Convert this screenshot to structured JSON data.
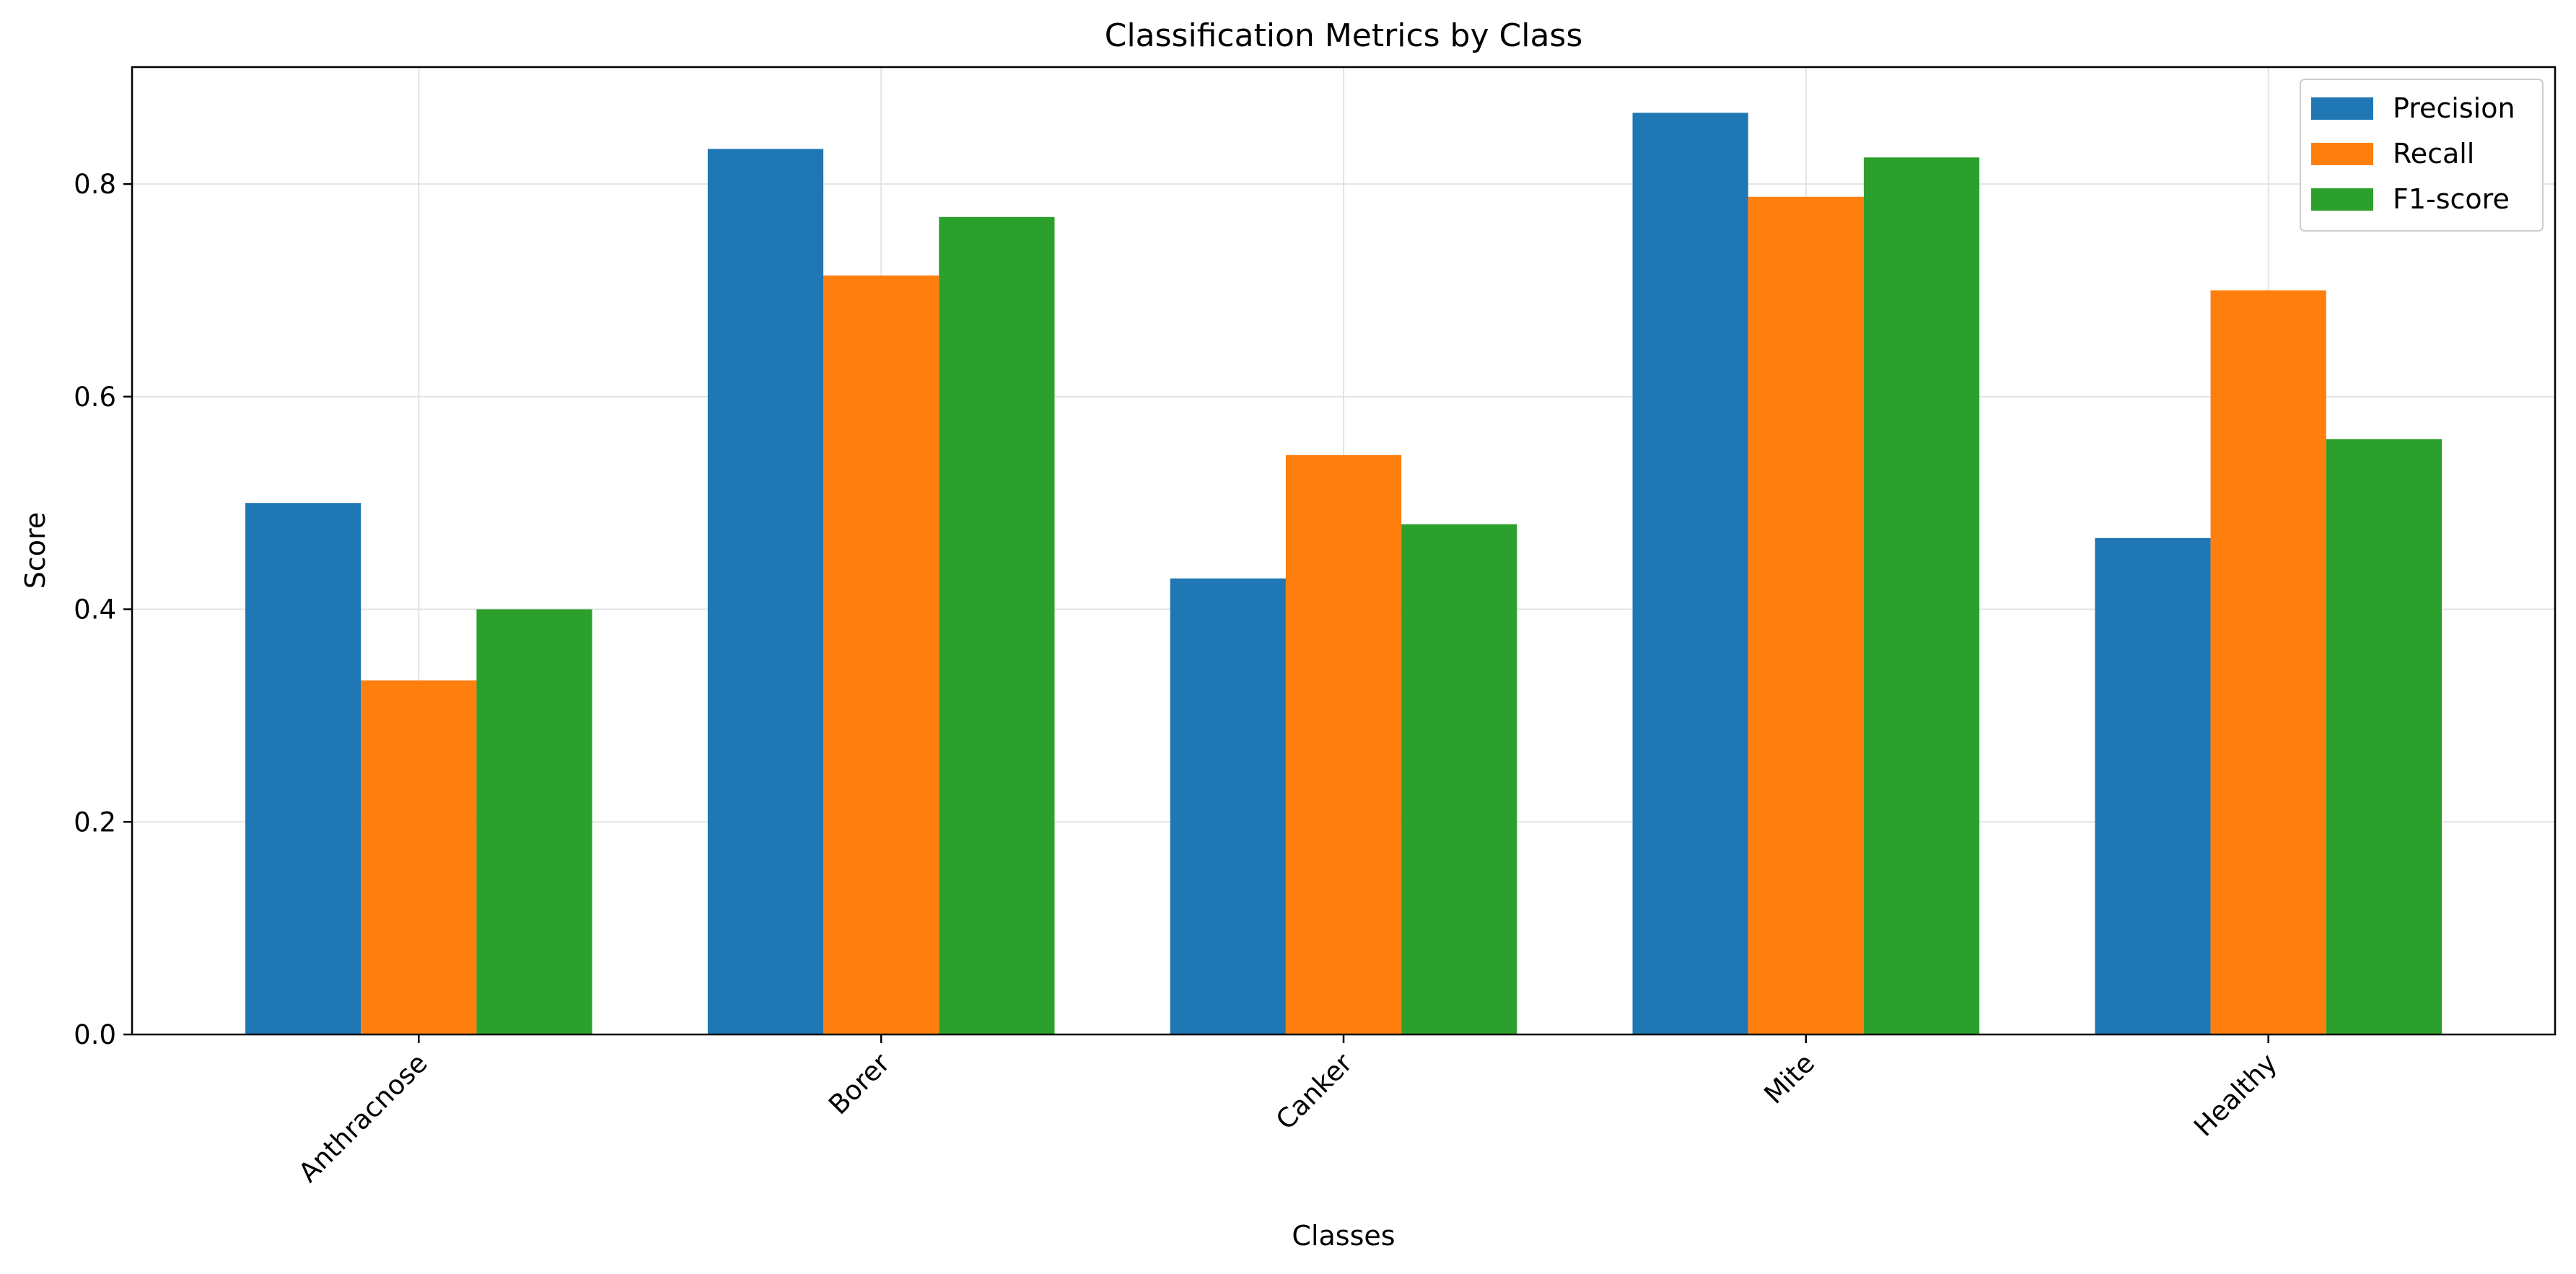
{
  "chart_data": {
    "type": "bar",
    "title": "Classification Metrics by Class",
    "xlabel": "Classes",
    "ylabel": "Score",
    "categories": [
      "Anthracnose",
      "Borer",
      "Canker",
      "Mite",
      "Healthy"
    ],
    "series": [
      {
        "name": "Precision",
        "color": "#1f77b4",
        "values": [
          0.5,
          0.833,
          0.429,
          0.867,
          0.467
        ]
      },
      {
        "name": "Recall",
        "color": "#ff7f0e",
        "values": [
          0.333,
          0.714,
          0.545,
          0.788,
          0.7
        ]
      },
      {
        "name": "F1-score",
        "color": "#2ca02c",
        "values": [
          0.4,
          0.769,
          0.48,
          0.825,
          0.56
        ]
      }
    ],
    "ylim": [
      0,
      0.91
    ],
    "yticks": [
      "0.0",
      "0.2",
      "0.4",
      "0.6",
      "0.8"
    ],
    "grid": true,
    "legend_position": "top-right",
    "xtick_rotation": 45
  }
}
